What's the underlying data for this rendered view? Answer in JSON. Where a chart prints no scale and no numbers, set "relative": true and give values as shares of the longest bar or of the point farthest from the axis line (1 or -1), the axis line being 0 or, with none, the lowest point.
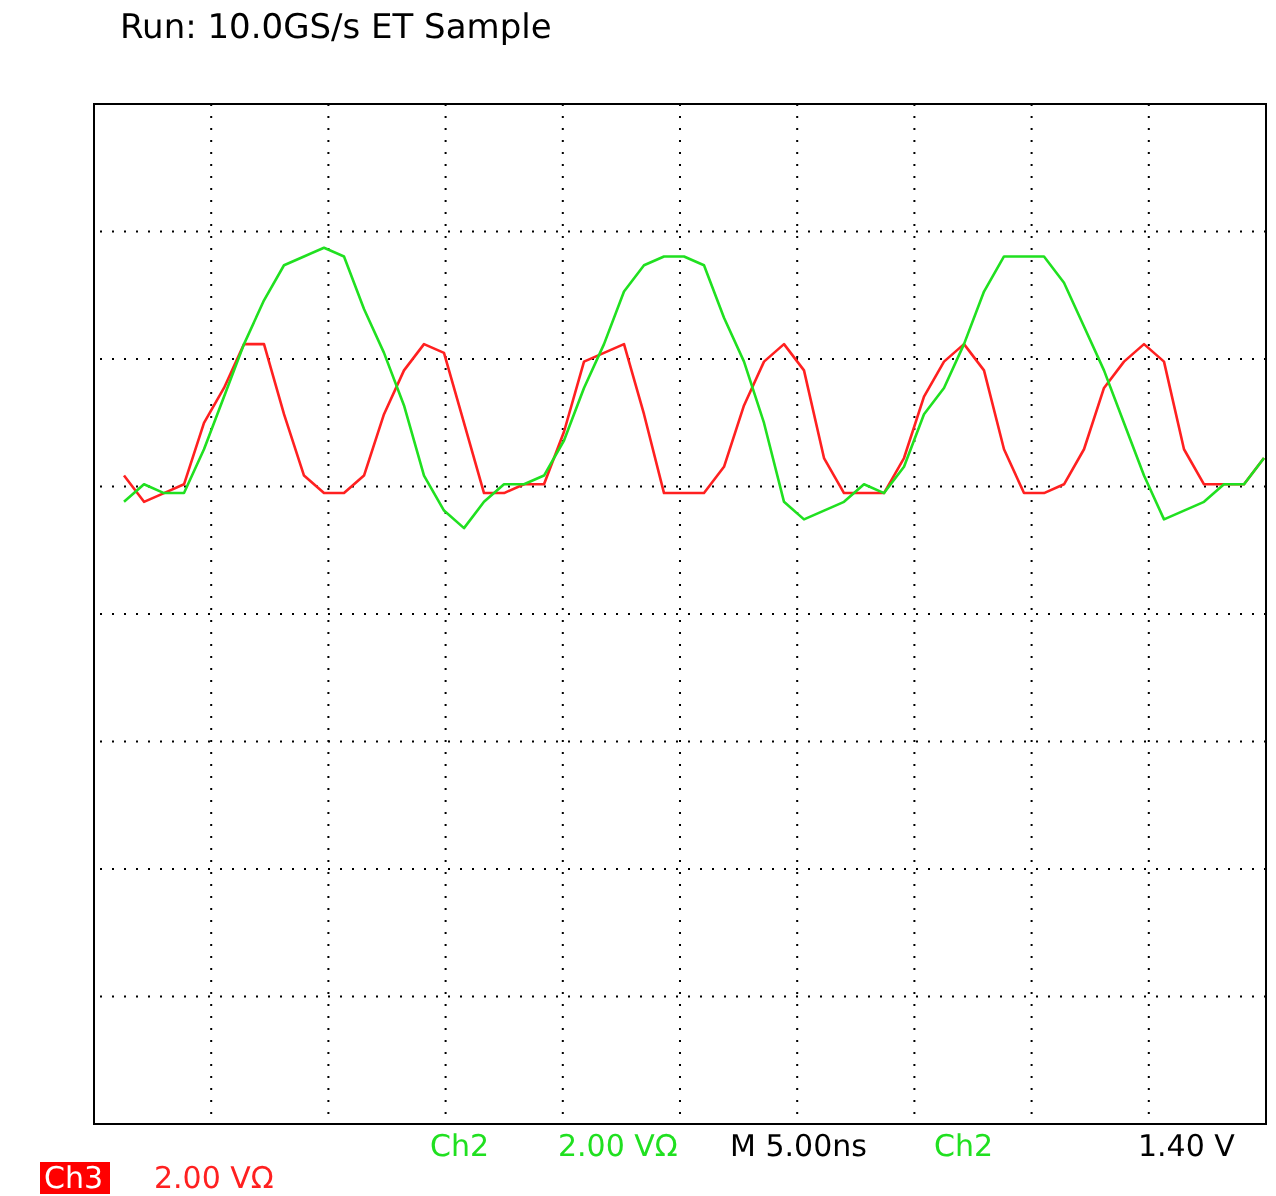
{
  "chart_data": {
    "type": "line",
    "title": "Run: 10.0GS/s ET Sample",
    "relative": true,
    "grid": true,
    "line_style": "solid",
    "marker": "none",
    "categories": [
      null,
      null,
      null,
      null,
      null,
      null,
      null,
      null,
      null,
      null,
      null,
      null,
      null,
      null,
      null,
      null,
      null,
      null,
      null,
      null,
      null,
      null,
      null,
      null,
      null,
      null,
      null,
      null,
      null,
      null,
      null,
      null,
      null,
      null,
      null,
      null,
      null,
      null,
      null,
      null,
      null,
      null,
      null,
      null,
      null,
      null,
      null,
      null,
      null,
      null,
      null,
      null,
      null,
      null,
      null,
      null,
      null,
      null
    ],
    "series": [
      {
        "color": "#ff2020",
        "values": [
          0.74,
          0.71,
          0.72,
          0.73,
          0.8,
          0.84,
          0.89,
          0.89,
          0.81,
          0.74,
          0.72,
          0.72,
          0.74,
          0.81,
          0.86,
          0.89,
          0.88,
          0.8,
          0.72,
          0.72,
          0.73,
          0.73,
          0.79,
          0.87,
          0.88,
          0.89,
          0.81,
          0.72,
          0.72,
          0.72,
          0.75,
          0.82,
          0.87,
          0.89,
          0.86,
          0.76,
          0.72,
          0.72,
          0.72,
          0.76,
          0.83,
          0.87,
          0.89,
          0.86,
          0.77,
          0.72,
          0.72,
          0.73,
          0.77,
          0.84,
          0.87,
          0.89,
          0.87,
          0.77,
          0.73,
          0.73,
          0.73,
          0.76
        ]
      },
      {
        "color": "#20e020",
        "values": [
          0.71,
          0.73,
          0.72,
          0.72,
          0.77,
          0.83,
          0.89,
          0.94,
          0.98,
          0.99,
          1.0,
          0.99,
          0.93,
          0.88,
          0.82,
          0.74,
          0.7,
          0.68,
          0.71,
          0.73,
          0.73,
          0.74,
          0.78,
          0.84,
          0.89,
          0.95,
          0.98,
          0.99,
          0.99,
          0.98,
          0.92,
          0.87,
          0.8,
          0.71,
          0.69,
          0.7,
          0.71,
          0.73,
          0.72,
          0.75,
          0.81,
          0.84,
          0.89,
          0.95,
          0.99,
          0.99,
          0.99,
          0.96,
          0.91,
          0.86,
          0.8,
          0.74,
          0.69,
          0.7,
          0.71,
          0.73,
          0.73,
          0.76
        ]
      }
    ],
    "annotations": [
      "Ch2",
      "2.00 VΩ",
      "M 5.00ns",
      "Ch2",
      "1.40 V",
      "Ch3",
      "2.00 VΩ"
    ]
  }
}
